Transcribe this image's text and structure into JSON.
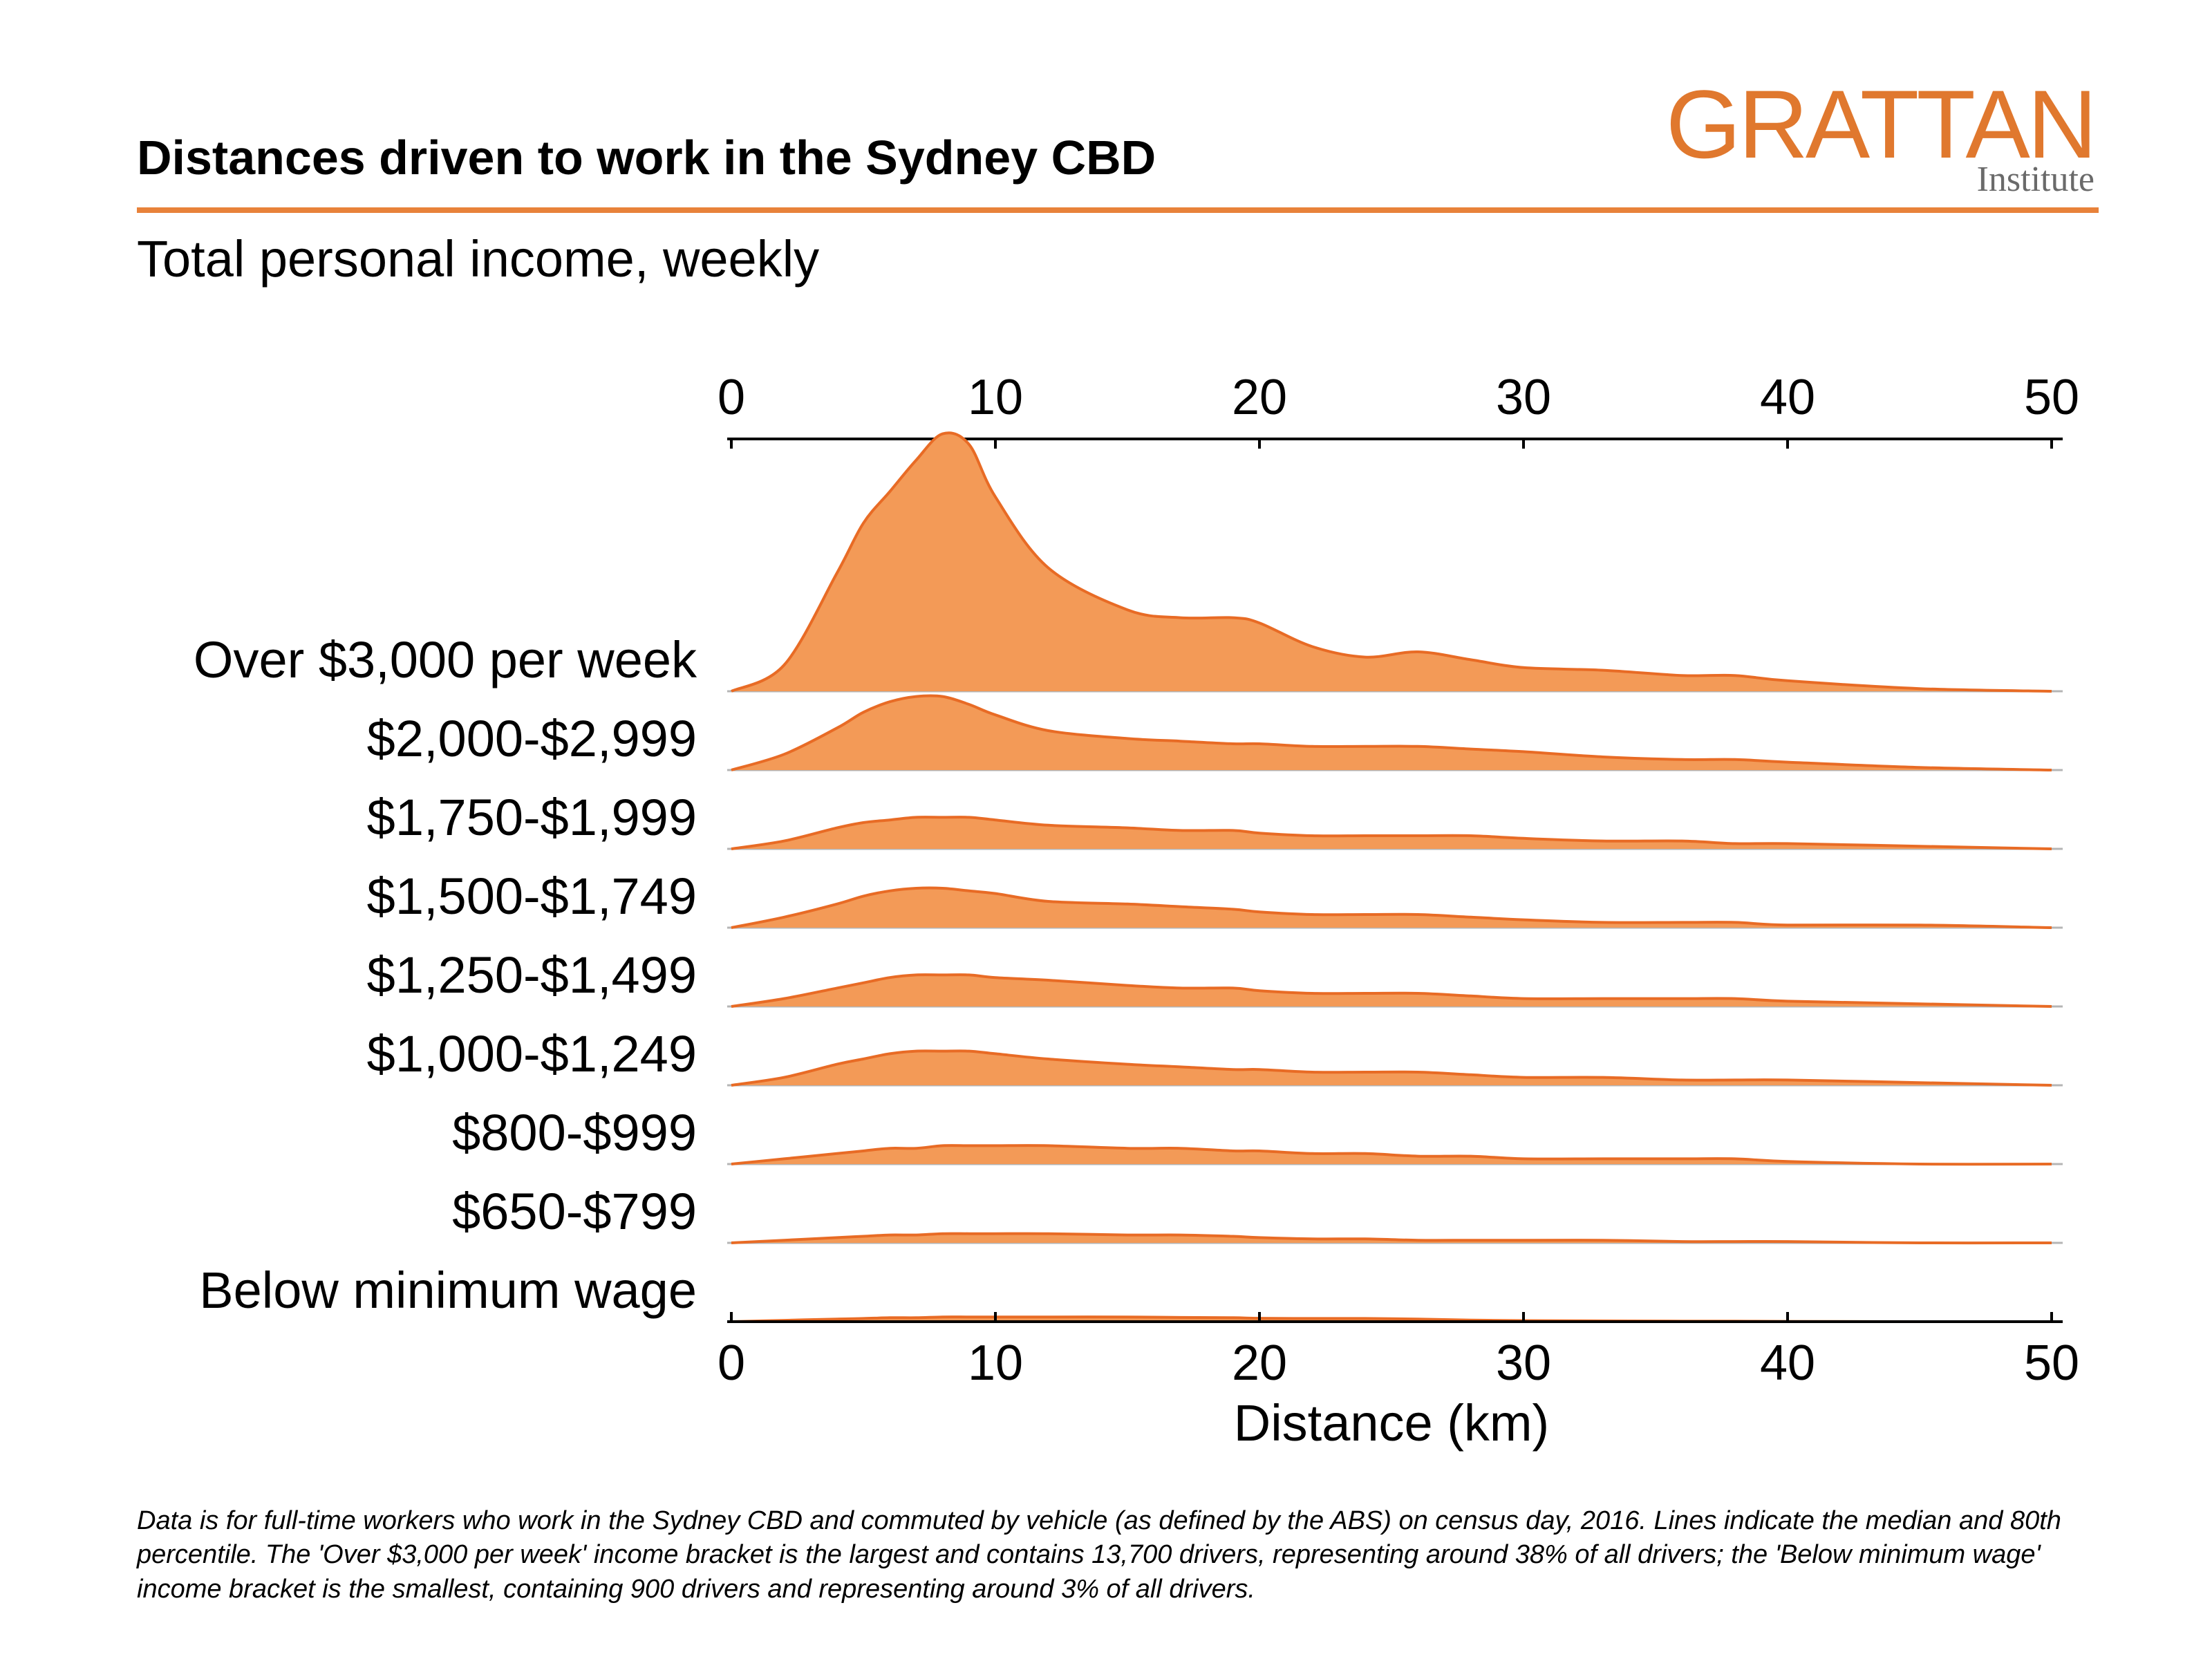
{
  "header": {
    "title": "Distances driven to work in the Sydney CBD",
    "subtitle": "Total personal income, weekly"
  },
  "logo": {
    "main": "GRATTAN",
    "sub": "Institute"
  },
  "footnote": "Data is for full-time workers who work in the Sydney CBD and commuted by vehicle (as defined by the ABS) on census day, 2016. Lines indicate the median and 80th percentile. The 'Over $3,000 per week' income bracket is the largest and contains 13,700 drivers, representing around 38% of all drivers; the 'Below minimum wage' income bracket is the smallest, containing 900 drivers and representing around 3% of all drivers.",
  "colors": {
    "fill": "#f39a57",
    "stroke": "#e86b25",
    "accent": "#e8823a",
    "baseline": "#b5b5b5"
  },
  "chart_data": {
    "type": "area",
    "subtype": "ridgeline",
    "xlabel": "Distance (km)",
    "xlim": [
      0,
      50
    ],
    "xticks": [
      0,
      10,
      20,
      30,
      40,
      50
    ],
    "x": [
      0,
      2,
      4,
      5,
      6,
      7,
      8,
      9,
      10,
      12,
      15,
      17,
      19,
      20,
      22,
      24,
      26,
      28,
      30,
      33,
      36,
      38,
      40,
      45,
      50
    ],
    "series": [
      {
        "name": "Over $3,000 per week",
        "values": [
          0.0,
          0.1,
          0.45,
          0.64,
          0.76,
          0.88,
          0.98,
          0.94,
          0.74,
          0.47,
          0.31,
          0.28,
          0.28,
          0.26,
          0.17,
          0.13,
          0.15,
          0.12,
          0.09,
          0.08,
          0.06,
          0.06,
          0.04,
          0.01,
          0.0
        ]
      },
      {
        "name": "$2,000-$2,999",
        "values": [
          0.0,
          0.06,
          0.16,
          0.22,
          0.26,
          0.28,
          0.28,
          0.25,
          0.21,
          0.15,
          0.12,
          0.11,
          0.1,
          0.1,
          0.09,
          0.09,
          0.09,
          0.08,
          0.07,
          0.05,
          0.04,
          0.04,
          0.03,
          0.01,
          0.0
        ]
      },
      {
        "name": "$1,750-$1,999",
        "values": [
          0.0,
          0.03,
          0.08,
          0.1,
          0.11,
          0.12,
          0.12,
          0.12,
          0.11,
          0.09,
          0.08,
          0.07,
          0.07,
          0.06,
          0.05,
          0.05,
          0.05,
          0.05,
          0.04,
          0.03,
          0.03,
          0.02,
          0.02,
          0.01,
          0.0
        ]
      },
      {
        "name": "$1,500-$1,749",
        "values": [
          0.0,
          0.04,
          0.09,
          0.12,
          0.14,
          0.15,
          0.15,
          0.14,
          0.13,
          0.1,
          0.09,
          0.08,
          0.07,
          0.06,
          0.05,
          0.05,
          0.05,
          0.04,
          0.03,
          0.02,
          0.02,
          0.02,
          0.01,
          0.01,
          0.0
        ]
      },
      {
        "name": "$1,250-$1,499",
        "values": [
          0.0,
          0.03,
          0.07,
          0.09,
          0.11,
          0.12,
          0.12,
          0.12,
          0.11,
          0.1,
          0.08,
          0.07,
          0.07,
          0.06,
          0.05,
          0.05,
          0.05,
          0.04,
          0.03,
          0.03,
          0.03,
          0.03,
          0.02,
          0.01,
          0.0
        ]
      },
      {
        "name": "$1,000-$1,249",
        "values": [
          0.0,
          0.03,
          0.08,
          0.1,
          0.12,
          0.13,
          0.13,
          0.13,
          0.12,
          0.1,
          0.08,
          0.07,
          0.06,
          0.06,
          0.05,
          0.05,
          0.05,
          0.04,
          0.03,
          0.03,
          0.02,
          0.02,
          0.02,
          0.01,
          0.0
        ]
      },
      {
        "name": "$800-$999",
        "values": [
          0.0,
          0.02,
          0.04,
          0.05,
          0.06,
          0.06,
          0.07,
          0.07,
          0.07,
          0.07,
          0.06,
          0.06,
          0.05,
          0.05,
          0.04,
          0.04,
          0.03,
          0.03,
          0.02,
          0.02,
          0.02,
          0.02,
          0.01,
          0.0,
          0.0
        ]
      },
      {
        "name": "$650-$799",
        "values": [
          0.0,
          0.01,
          0.02,
          0.025,
          0.03,
          0.03,
          0.035,
          0.035,
          0.035,
          0.035,
          0.03,
          0.03,
          0.025,
          0.02,
          0.015,
          0.015,
          0.01,
          0.01,
          0.01,
          0.01,
          0.005,
          0.005,
          0.005,
          0.0,
          0.0
        ]
      },
      {
        "name": "Below minimum wage",
        "values": [
          0.0,
          0.005,
          0.01,
          0.012,
          0.015,
          0.015,
          0.018,
          0.018,
          0.018,
          0.018,
          0.018,
          0.016,
          0.015,
          0.013,
          0.012,
          0.012,
          0.01,
          0.006,
          0.004,
          0.003,
          0.002,
          0.002,
          0.001,
          0.0,
          0.0
        ]
      }
    ]
  }
}
